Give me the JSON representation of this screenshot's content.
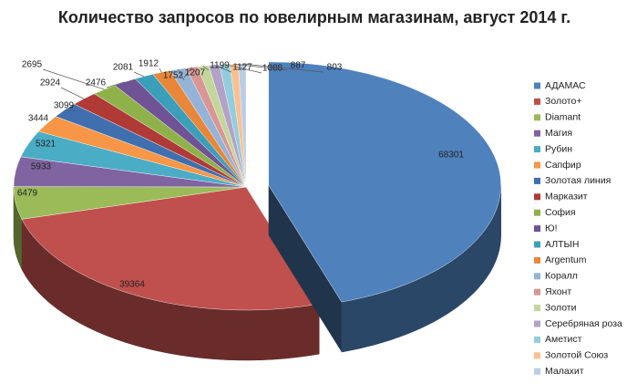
{
  "chart_data": {
    "type": "pie",
    "title": "Количество запросов по ювелирным магазинам, август 2014 г.",
    "categories": [
      "АДАМАС",
      "Золото+",
      "Diamant",
      "Магия",
      "Рубин",
      "Сапфир",
      "Золотая линия",
      "Марказит",
      "София",
      "Ю!",
      "АЛТЫН",
      "Argentum",
      "Коралл",
      "Яхонт",
      "Золоти",
      "Серебряная роза",
      "Аметист",
      "Золотой Союз",
      "Малахит"
    ],
    "values": [
      68301,
      39364,
      6479,
      5933,
      5321,
      3444,
      3099,
      2924,
      2695,
      2476,
      2081,
      1912,
      1752,
      1207,
      1199,
      1127,
      1088,
      887,
      803
    ],
    "colors": [
      "#4f81bd",
      "#c0504d",
      "#9bbb59",
      "#8064a2",
      "#4bacc6",
      "#f79646",
      "#3f6fae",
      "#b03a36",
      "#8fb14a",
      "#6f5394",
      "#3c9fba",
      "#e8863a",
      "#95b3d7",
      "#d99694",
      "#c3d69b",
      "#b3a2c7",
      "#93cddd",
      "#fac090",
      "#b9cde5"
    ],
    "legend": "right"
  }
}
